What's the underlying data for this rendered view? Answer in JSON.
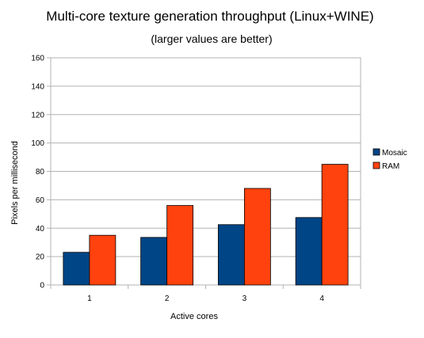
{
  "chart_data": {
    "type": "bar",
    "title": "Multi-core texture generation throughput (Linux+WINE)",
    "subtitle": "(larger values are better)",
    "xlabel": "Active cores",
    "ylabel": "Pixels per millisecond",
    "categories": [
      "1",
      "2",
      "3",
      "4"
    ],
    "ylim": [
      0,
      160
    ],
    "yticks": [
      0,
      20,
      40,
      60,
      80,
      100,
      120,
      140,
      160
    ],
    "grid": true,
    "legend_position": "right",
    "series": [
      {
        "name": "Mosaic",
        "color": "#004586",
        "values": [
          23,
          33.5,
          42.5,
          47.5
        ]
      },
      {
        "name": "RAM",
        "color": "#ff420e",
        "values": [
          35,
          56,
          68,
          85
        ]
      }
    ]
  }
}
